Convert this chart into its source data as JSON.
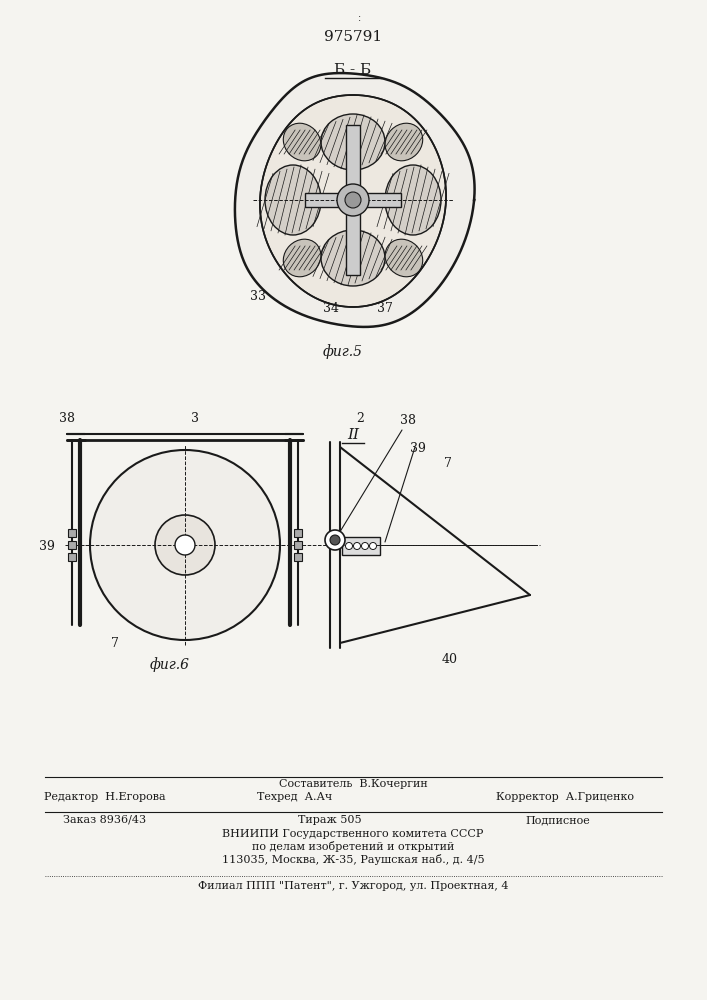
{
  "patent_number": "975791",
  "fig5_label": "Б - Б",
  "fig5_caption": "фиг.5",
  "fig6_label": "II",
  "fig6_caption": "фиг.6",
  "bg_color": "#f5f4f0",
  "line_color": "#1a1a1a",
  "footer_line1_left": "Редактор  Н.Егорова",
  "footer_line1_mid": "Техред  А.Ач",
  "footer_line1_mid2": "Составитель  В.Кочергин",
  "footer_line1_right": "Корректор  А.Гриценко",
  "footer_line2_left": "Заказ 8936/43",
  "footer_line2_mid": "Тираж 505",
  "footer_line2_right": "Подписное",
  "footer_line3": "ВНИИПИ Государственного комитета СССР",
  "footer_line4": "по делам изобретений и открытий",
  "footer_line5": "113035, Москва, Ж-35, Раушская наб., д. 4/5",
  "footer_line6": "Филиал ППП \"Патент\", г. Ужгород, ул. Проектная, 4"
}
